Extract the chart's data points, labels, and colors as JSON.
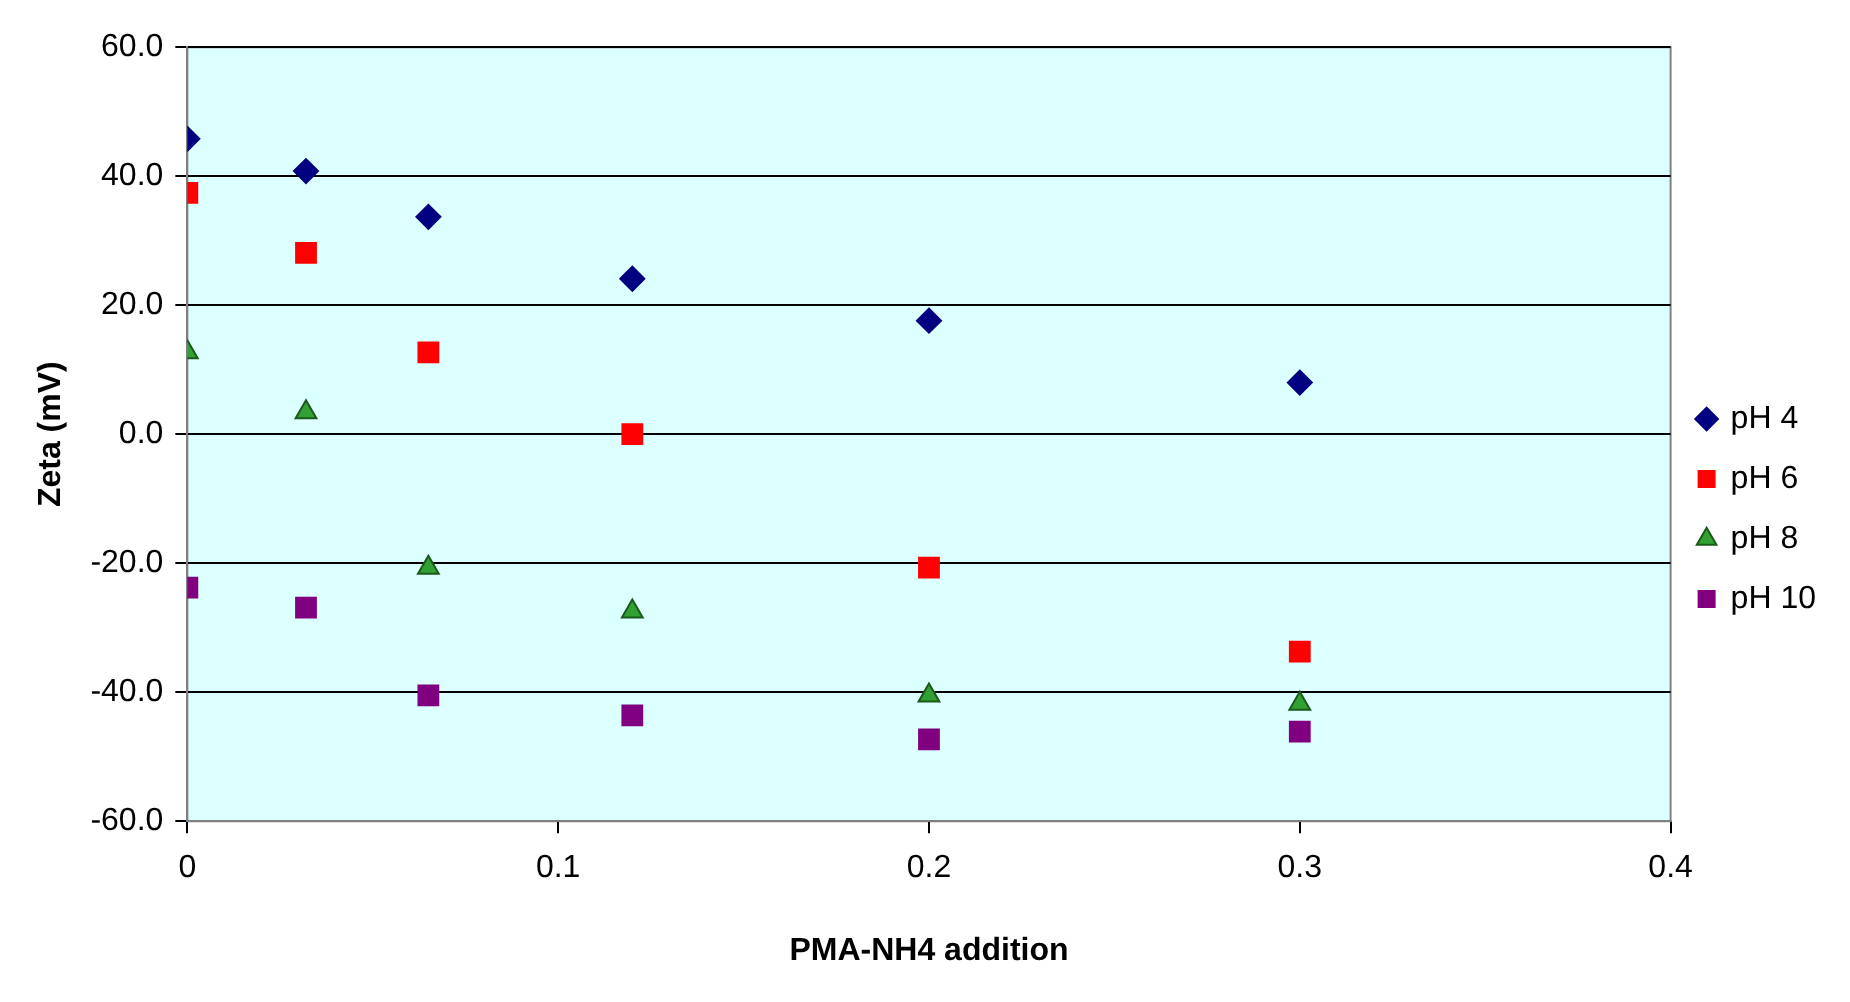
{
  "chart_data": {
    "type": "scatter",
    "xlabel": "PMA-NH4 addition",
    "ylabel": "Zeta (mV)",
    "x": [
      0,
      0.032,
      0.065,
      0.12,
      0.2,
      0.3
    ],
    "series": [
      {
        "name": "pH 4",
        "color": "#000080",
        "marker": "diamond",
        "values": [
          45.8,
          40.8,
          33.7,
          24.1,
          17.6,
          8.0
        ]
      },
      {
        "name": "pH 6",
        "color": "#ff0000",
        "marker": "square",
        "values": [
          37.4,
          28.1,
          12.7,
          0,
          -20.7,
          -33.7
        ]
      },
      {
        "name": "pH 8",
        "color": "#33a033",
        "marker": "triangle",
        "values": [
          12.7,
          3.4,
          -20.7,
          -27.5,
          -40.5,
          -41.8
        ]
      },
      {
        "name": "pH 10",
        "color": "#800080",
        "marker": "square",
        "values": [
          -23.8,
          -26.9,
          -40.5,
          -43.6,
          -47.3,
          -46.1
        ]
      }
    ],
    "xlim": [
      0,
      0.4
    ],
    "xticks": [
      0,
      0.1,
      0.2,
      0.3,
      0.4
    ],
    "ylim": [
      -60,
      60
    ],
    "yticks": [
      {
        "value": -60,
        "label": "-60.0"
      },
      {
        "value": -40,
        "label": "-40.0"
      },
      {
        "value": -20,
        "label": "-20.0"
      },
      {
        "value": 0,
        "label": "0.0"
      },
      {
        "value": 20,
        "label": "20.0"
      },
      {
        "value": 40,
        "label": "40.0"
      },
      {
        "value": 60,
        "label": "60.0"
      }
    ],
    "grid": "y",
    "legend": "right"
  }
}
